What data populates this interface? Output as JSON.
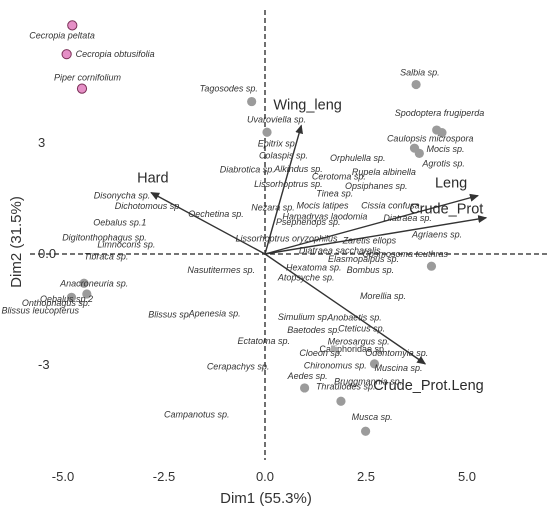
{
  "chart_data": {
    "type": "scatter",
    "title": "",
    "xlabel": "Dim1 (55.3%)",
    "ylabel": "Dim2 (31.5%)",
    "xlim": [
      -5.3,
      5.7
    ],
    "ylim": [
      -6.3,
      6.9
    ],
    "xticks": [
      {
        "v": -5.0,
        "label": "-5.0"
      },
      {
        "v": -2.5,
        "label": "-2.5"
      },
      {
        "v": 0.0,
        "label": "0.0"
      },
      {
        "v": 2.5,
        "label": "2.5"
      },
      {
        "v": 5.0,
        "label": "5.0"
      }
    ],
    "yticks": [
      {
        "v": 3.0,
        "label": "3"
      },
      {
        "v": 0.0,
        "label": "0.0"
      },
      {
        "v": -3.0,
        "label": "-3"
      }
    ],
    "grid": false,
    "reference_lines": {
      "x": 0,
      "y": 0,
      "style": "dashed"
    },
    "colors": {
      "point": "#9b9b9b",
      "highlight": "#e58fc6",
      "highlight_edge": "#7a2f56",
      "arrow": "#333333"
    },
    "points": [
      {
        "x": -4.77,
        "y": 6.18,
        "label": "Cecropia peltata",
        "highlight": true
      },
      {
        "x": -4.91,
        "y": 5.4,
        "label": "Cecropia obtusifolia",
        "highlight": true
      },
      {
        "x": -4.53,
        "y": 4.47,
        "label": "Piper cornifolium",
        "highlight": true
      },
      {
        "x": 3.74,
        "y": 4.58,
        "label": "Salbia sp."
      },
      {
        "x": -0.33,
        "y": 4.12,
        "label": "Tagosodes sp."
      },
      {
        "x": 0.05,
        "y": 3.29,
        "label": "Uvaroviella sp."
      },
      {
        "x": 4.25,
        "y": 3.35,
        "label": "Spodoptera frugiperda"
      },
      {
        "x": 4.38,
        "y": 3.28,
        "label": "Caulopsis microspora"
      },
      {
        "x": 3.7,
        "y": 2.86,
        "label": "Mocis sp."
      },
      {
        "x": 3.82,
        "y": 2.72,
        "label": "Agrotis sp."
      },
      {
        "x": -4.48,
        "y": -0.79,
        "label": "Oebalus sp.2"
      },
      {
        "x": -4.41,
        "y": -1.08,
        "label": "Onthophagus sp."
      },
      {
        "x": -4.79,
        "y": -1.17,
        "label": "Blissus leucopterus"
      },
      {
        "x": 4.12,
        "y": -0.33,
        "label": "Cosmosoma teuthras"
      },
      {
        "x": 2.71,
        "y": -2.97,
        "label": "Calliphoridae sp."
      },
      {
        "x": 0.98,
        "y": -3.62,
        "label": "Aedes sp."
      },
      {
        "x": 1.88,
        "y": -3.98,
        "label": "Thraulodes sp."
      },
      {
        "x": 2.49,
        "y": -4.79,
        "label": "Musca sp."
      }
    ],
    "text_labels": [
      {
        "x": -0.18,
        "y": 2.91,
        "label": "Epitrix sp."
      },
      {
        "x": -0.15,
        "y": 2.58,
        "label": "Colaspis sp."
      },
      {
        "x": -1.12,
        "y": 2.2,
        "label": "Diabrotica sp."
      },
      {
        "x": 0.23,
        "y": 2.22,
        "label": "Alkindus sp."
      },
      {
        "x": 1.61,
        "y": 2.51,
        "label": "Orphulella sp."
      },
      {
        "x": 1.16,
        "y": 2.02,
        "label": "Cerotoma sp."
      },
      {
        "x": 2.15,
        "y": 2.13,
        "label": "Rupela albinella"
      },
      {
        "x": -0.27,
        "y": 1.81,
        "label": "Lissorhoptrus sp."
      },
      {
        "x": 1.98,
        "y": 1.76,
        "label": "Opsiphanes sp."
      },
      {
        "x": -4.24,
        "y": 1.5,
        "label": "Disonycha sp."
      },
      {
        "x": 1.27,
        "y": 1.55,
        "label": "Tinea sp."
      },
      {
        "x": 0.78,
        "y": 1.23,
        "label": "Mocis latipes"
      },
      {
        "x": 2.38,
        "y": 1.23,
        "label": "Cissia confusa"
      },
      {
        "x": 0.43,
        "y": 0.93,
        "label": "Hamadryas laodomia"
      },
      {
        "x": 2.93,
        "y": 0.89,
        "label": "Diatraea sp."
      },
      {
        "x": -3.72,
        "y": 1.21,
        "label": "Dichotomous sp."
      },
      {
        "x": -0.34,
        "y": 1.18,
        "label": "Nezara sp."
      },
      {
        "x": -1.9,
        "y": 1.0,
        "label": "Oechetina sp."
      },
      {
        "x": -4.25,
        "y": 0.77,
        "label": "Oebalus sp.1"
      },
      {
        "x": 0.27,
        "y": 0.79,
        "label": "Psephenops sp."
      },
      {
        "x": -5.02,
        "y": 0.37,
        "label": "Digitonthophagus sp."
      },
      {
        "x": -0.73,
        "y": 0.34,
        "label": "Lissorhoptrus oryzophilus"
      },
      {
        "x": -4.15,
        "y": 0.18,
        "label": "Limnocoris sp."
      },
      {
        "x": 3.64,
        "y": 0.44,
        "label": "Agriaens sp."
      },
      {
        "x": 1.92,
        "y": 0.28,
        "label": "Zaretis ellops"
      },
      {
        "x": -4.48,
        "y": -0.15,
        "label": "Tibraca sp."
      },
      {
        "x": 0.84,
        "y": 0.01,
        "label": "Diatraea saccharalis"
      },
      {
        "x": 1.56,
        "y": -0.21,
        "label": "Elasmopalpus sp."
      },
      {
        "x": -1.92,
        "y": -0.52,
        "label": "Nasutitermes sp."
      },
      {
        "x": 0.52,
        "y": -0.45,
        "label": "Hexatoma sp."
      },
      {
        "x": 2.02,
        "y": -0.52,
        "label": "Bombus sp."
      },
      {
        "x": 0.32,
        "y": -0.72,
        "label": "Atopsyche sp."
      },
      {
        "x": -5.07,
        "y": -0.88,
        "label": "Anacroneuria sp."
      },
      {
        "x": 2.35,
        "y": -1.22,
        "label": "Morellia sp."
      },
      {
        "x": -1.89,
        "y": -1.69,
        "label": "Apenesia sp."
      },
      {
        "x": -2.89,
        "y": -1.71,
        "label": "Blissus sp."
      },
      {
        "x": 0.32,
        "y": -1.79,
        "label": "Simulium sp."
      },
      {
        "x": 1.54,
        "y": -1.8,
        "label": "Anobaetis sp."
      },
      {
        "x": 0.55,
        "y": -2.14,
        "label": "Baetodes sp."
      },
      {
        "x": 1.81,
        "y": -2.1,
        "label": "Cteticus sp."
      },
      {
        "x": -0.68,
        "y": -2.43,
        "label": "Ectatoma sp."
      },
      {
        "x": 1.55,
        "y": -2.44,
        "label": "Merosargus sp."
      },
      {
        "x": 0.85,
        "y": -2.76,
        "label": "Cloeon sp."
      },
      {
        "x": 2.48,
        "y": -2.75,
        "label": "Odontomyia sp."
      },
      {
        "x": -1.44,
        "y": -3.12,
        "label": "Cerapachys sp."
      },
      {
        "x": 0.96,
        "y": -3.1,
        "label": "Chironomus sp."
      },
      {
        "x": 2.71,
        "y": -3.16,
        "label": "Muscina sp."
      },
      {
        "x": 1.71,
        "y": -3.53,
        "label": "Bruggmannia sp."
      },
      {
        "x": -2.5,
        "y": -4.42,
        "label": "Campanotus sp."
      }
    ],
    "vectors": [
      {
        "name": "Wing_leng",
        "x": 1.55,
        "y": 5.99
      },
      {
        "name": "Hard",
        "x": -4.86,
        "y": 2.86
      },
      {
        "name": "Leng",
        "x": 9.09,
        "y": 2.72
      },
      {
        "name": "Crude_Prot",
        "x": 9.44,
        "y": 1.69
      },
      {
        "name": "Crude_Prot.Leng",
        "x": 6.84,
        "y": -5.12
      }
    ],
    "vector_scale": 0.58
  }
}
